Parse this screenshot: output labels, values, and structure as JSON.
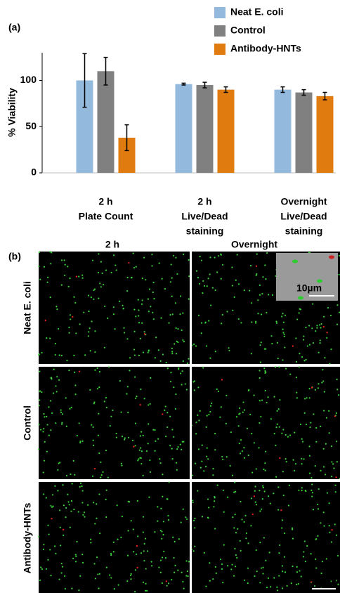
{
  "chart_data": {
    "type": "bar",
    "panel_label": "(a)",
    "ylabel": "% Viability",
    "categories": [
      [
        "2 h",
        "Plate Count"
      ],
      [
        "2 h",
        "Live/Dead",
        "staining"
      ],
      [
        "Overnight",
        "Live/Dead",
        "staining"
      ]
    ],
    "series": [
      {
        "name": "Neat E. coli",
        "color": "#93b9dd",
        "values": [
          100,
          96,
          90
        ],
        "errors": [
          29,
          1,
          3
        ]
      },
      {
        "name": "Control",
        "color": "#808080",
        "values": [
          110,
          95,
          87
        ],
        "errors": [
          15,
          3,
          3
        ]
      },
      {
        "name": "Antibody-HNTs",
        "color": "#e07b10",
        "values": [
          38,
          90,
          83
        ],
        "errors": [
          14,
          3,
          4
        ]
      }
    ],
    "ylim": [
      0,
      130
    ],
    "yticks": [
      0,
      50,
      100
    ],
    "legend": "upper right"
  },
  "micrographs": {
    "panel_label": "(b)",
    "columns": [
      "2 h",
      "Overnight"
    ],
    "rows": [
      "Neat E. coli",
      "Control",
      "Antibody-HNTs"
    ],
    "row_colors": [
      "#93b9dd",
      "#808080",
      "#e07b10"
    ],
    "inset_scale": "10µm",
    "scale": "50µm"
  }
}
